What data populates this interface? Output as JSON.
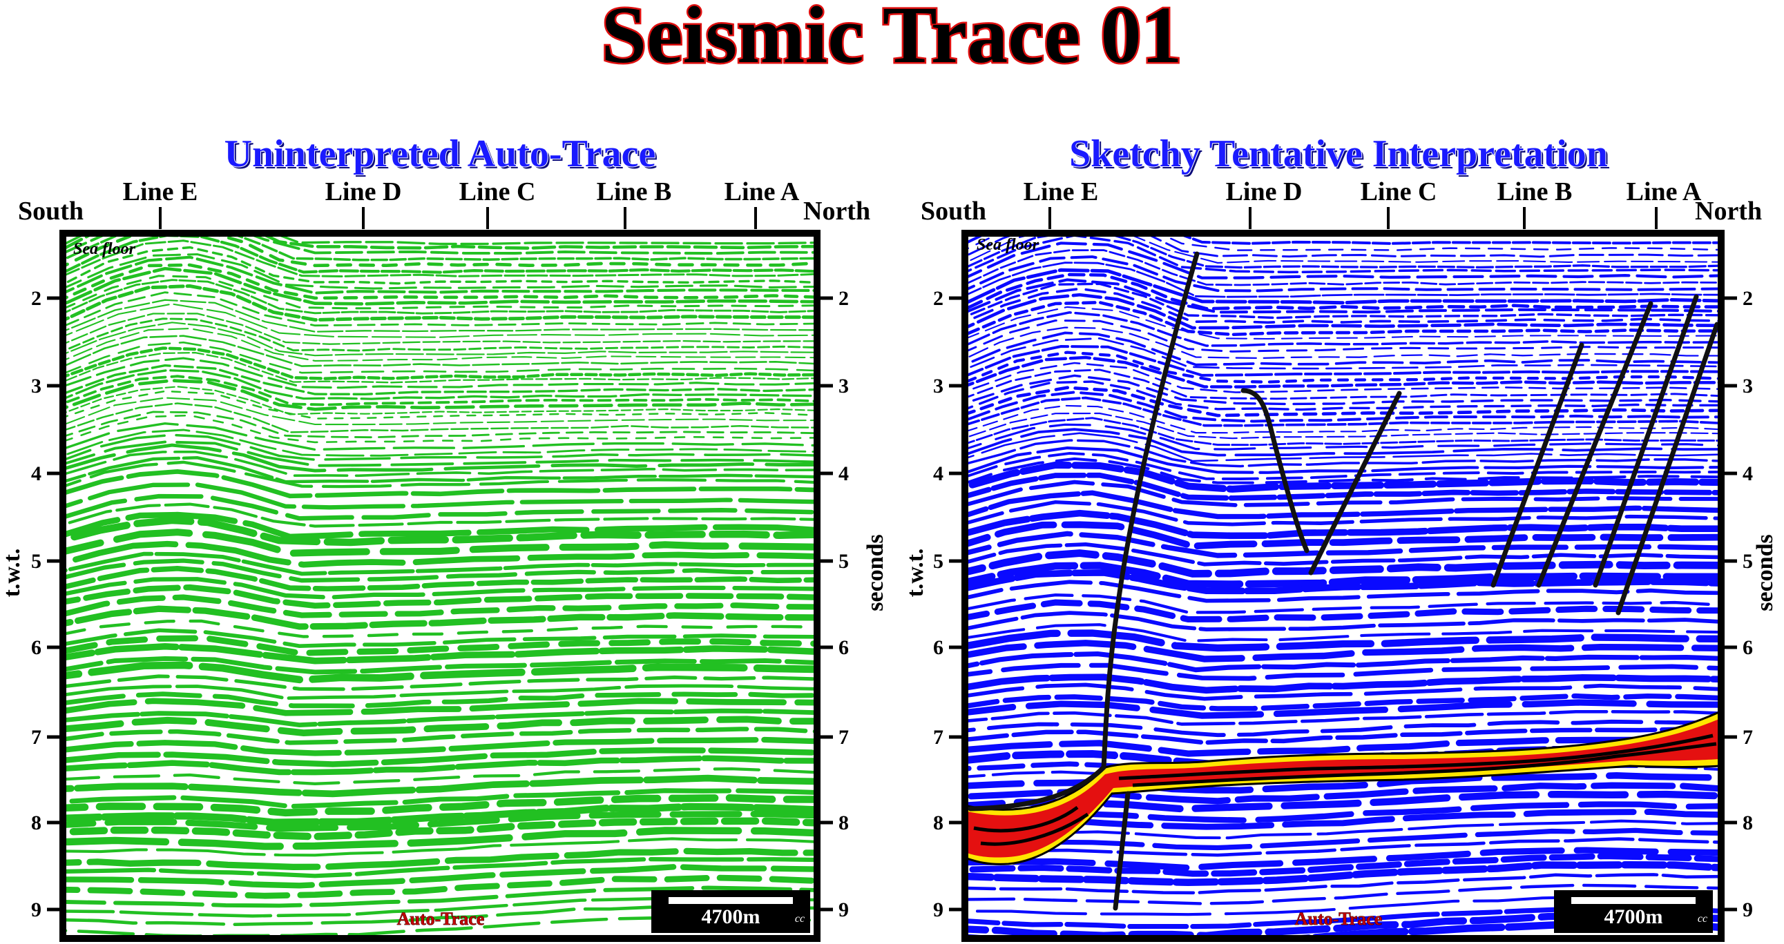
{
  "title": "Seismic Trace 01",
  "panels": [
    {
      "id": "left",
      "title": "Uninterpreted Auto-Trace",
      "south_label": "South",
      "north_label": "North",
      "lines": [
        "Line E",
        "Line D",
        "Line C",
        "Line B",
        "Line A"
      ],
      "left_axis_label": "t.w.t.",
      "right_axis_label": "seconds",
      "ticks": [
        "2",
        "3",
        "4",
        "5",
        "6",
        "7",
        "8",
        "9"
      ],
      "sea_floor_label": "Sea floor",
      "footer_label": "Auto-Trace",
      "scale_label": "4700m",
      "cc_label": "cc",
      "reflector_color": "#22c022"
    },
    {
      "id": "right",
      "title": "Sketchy Tentative Interpretation",
      "south_label": "South",
      "north_label": "North",
      "lines": [
        "Line E",
        "Line D",
        "Line C",
        "Line B",
        "Line A"
      ],
      "left_axis_label": "t.w.t.",
      "right_axis_label": "seconds",
      "ticks": [
        "2",
        "3",
        "4",
        "5",
        "6",
        "7",
        "8",
        "9"
      ],
      "sea_floor_label": "Sea floor",
      "footer_label": "Auto-Trace",
      "scale_label": "4700m",
      "cc_label": "cc",
      "reflector_color": "#0a0aff",
      "highlight_colors": {
        "fill": "#e41010",
        "rim": "#ffe600",
        "fault": "#101010"
      }
    }
  ]
}
